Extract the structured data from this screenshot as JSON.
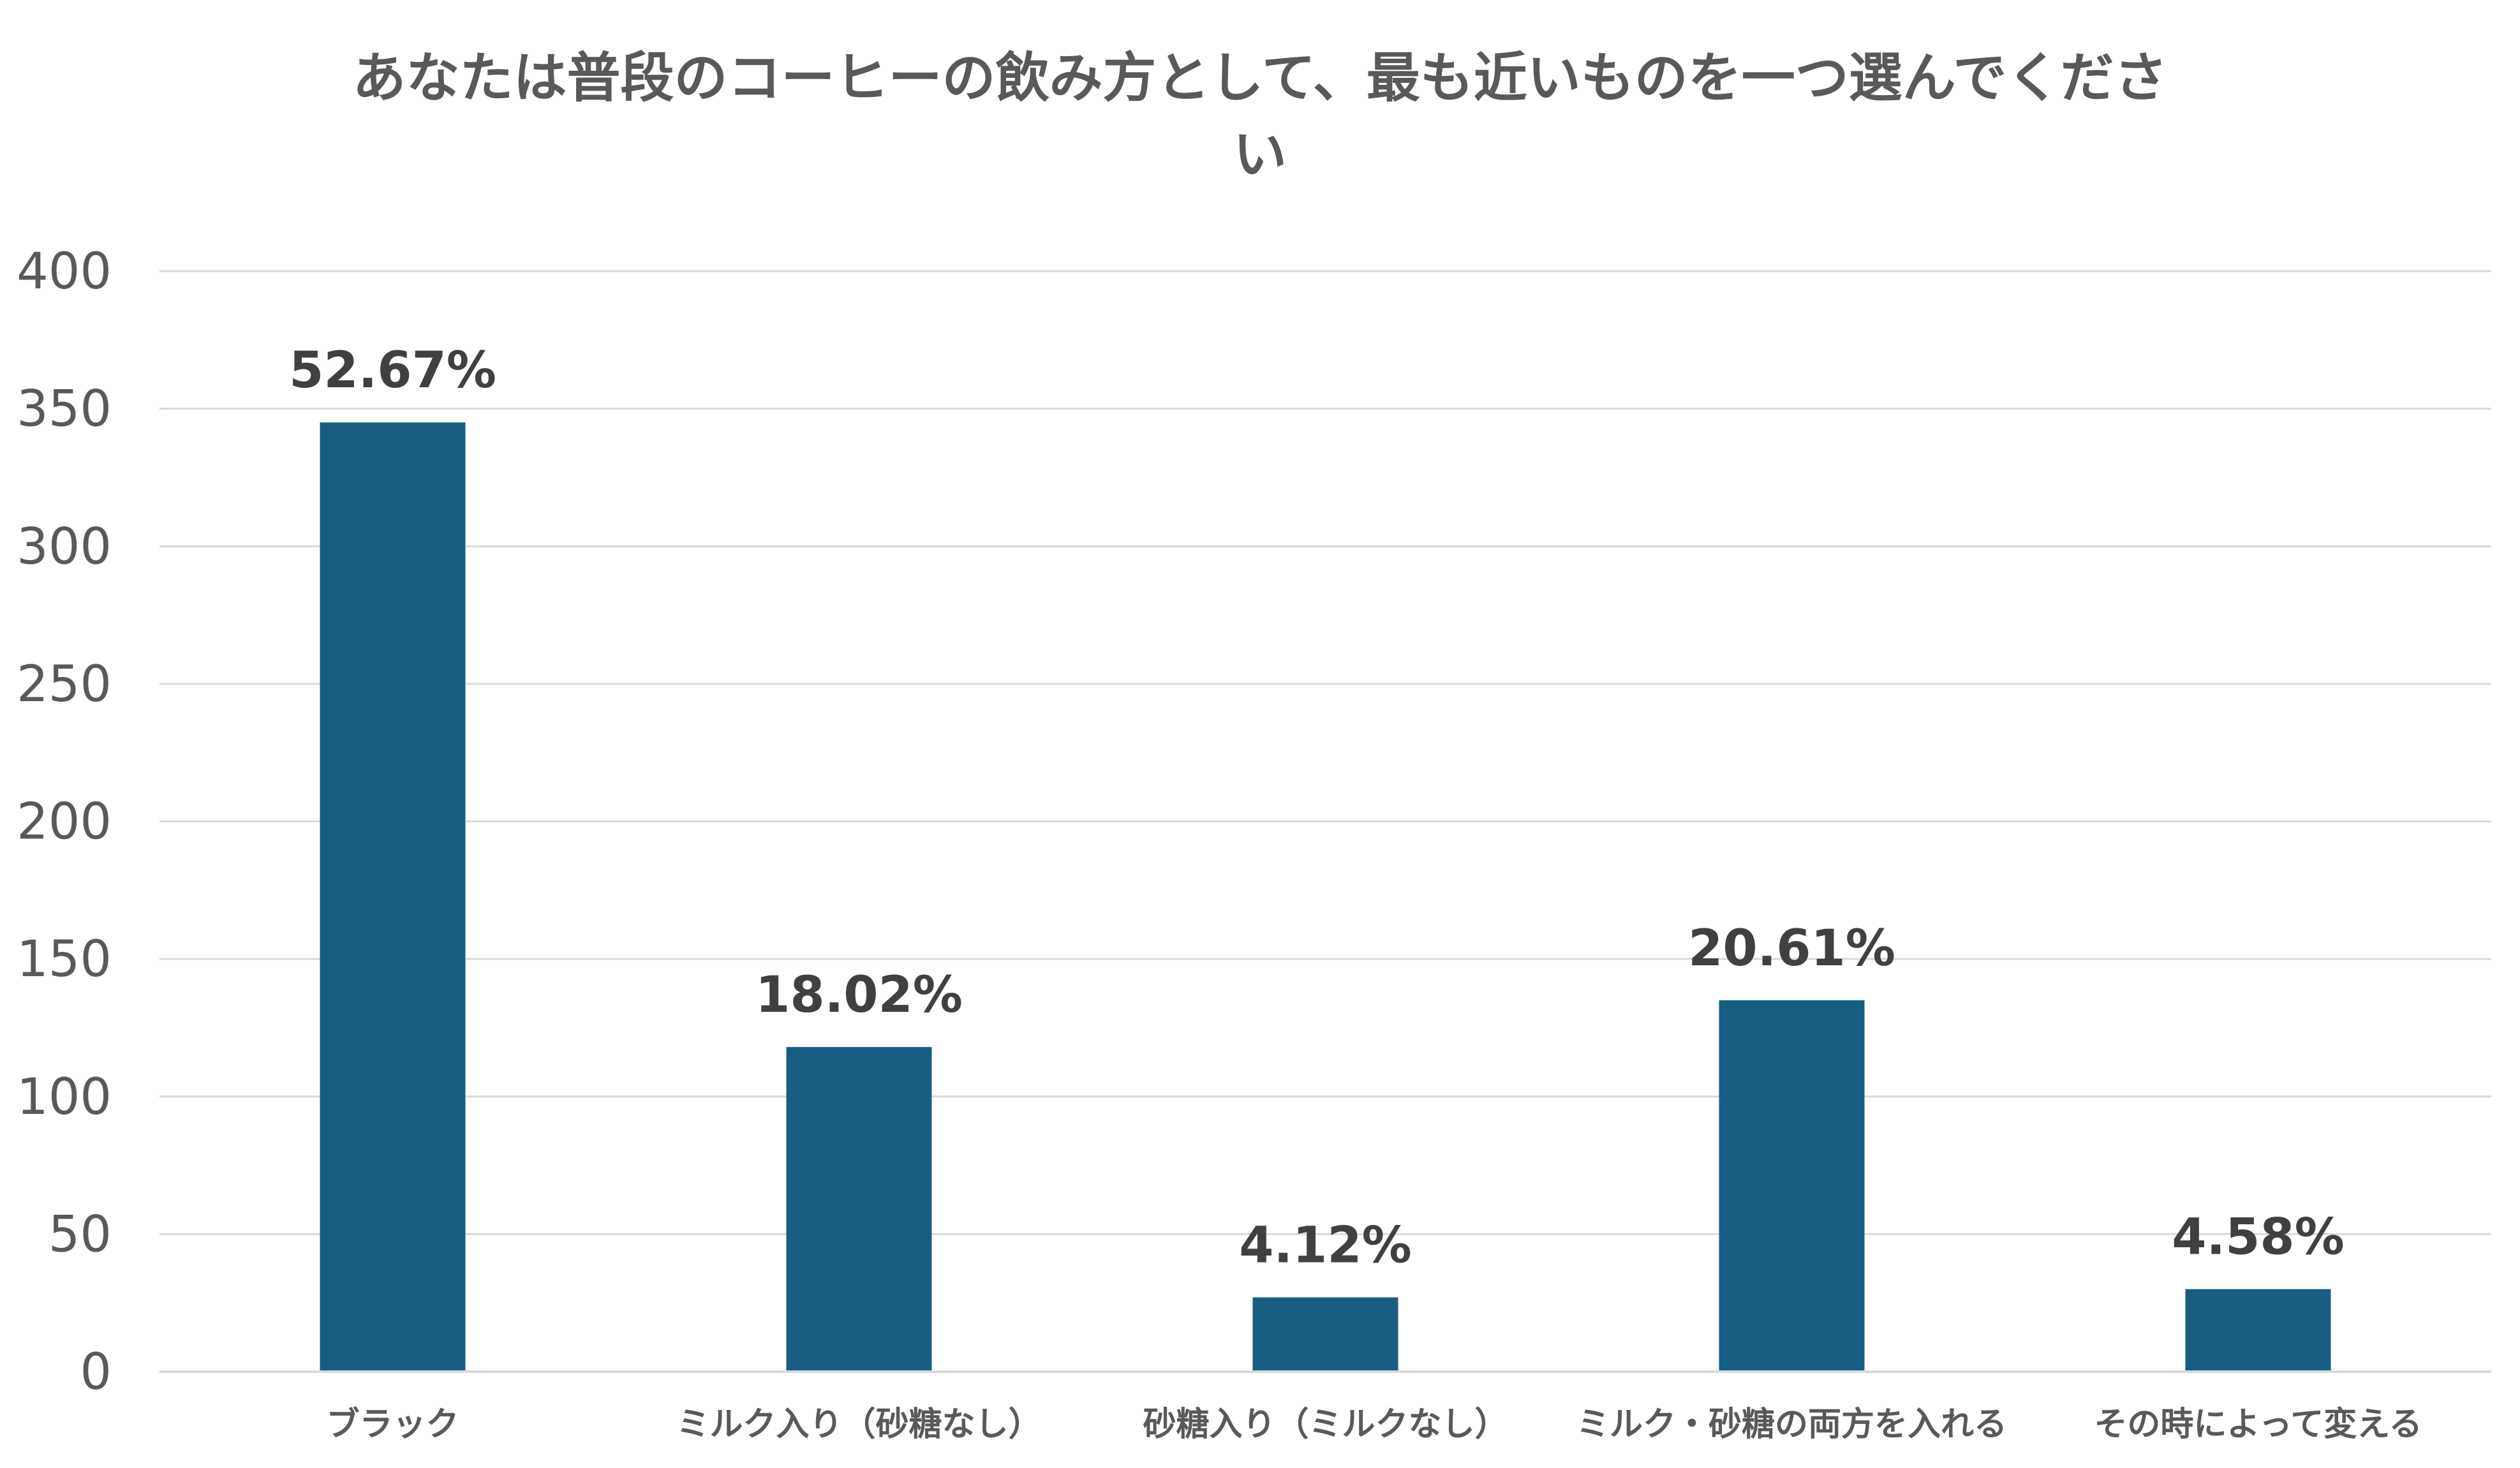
{
  "chart_data": {
    "type": "bar",
    "title_lines": [
      "あなたは普段のコーヒーの飲み方として、最も近いものを一つ選んでくださ",
      "い"
    ],
    "categories": [
      "ブラック",
      "ミルク入り（砂糖なし）",
      "砂糖入り（ミルクなし）",
      "ミルク・砂糖の両方を入れる",
      "その時によって変える"
    ],
    "values": [
      345,
      118,
      27,
      135,
      30
    ],
    "data_labels": [
      "52.67%",
      "18.02%",
      "4.12%",
      "20.61%",
      "4.58%"
    ],
    "ylim": [
      0,
      400
    ],
    "yticks": [
      "0",
      "50",
      "100",
      "150",
      "200",
      "250",
      "300",
      "350",
      "400"
    ],
    "xlabel": "",
    "ylabel": "",
    "grid": true,
    "bar_color": "#175E82",
    "gridline_color": "#D9D9D9",
    "text_color": "#595959",
    "label_color": "#404040"
  }
}
